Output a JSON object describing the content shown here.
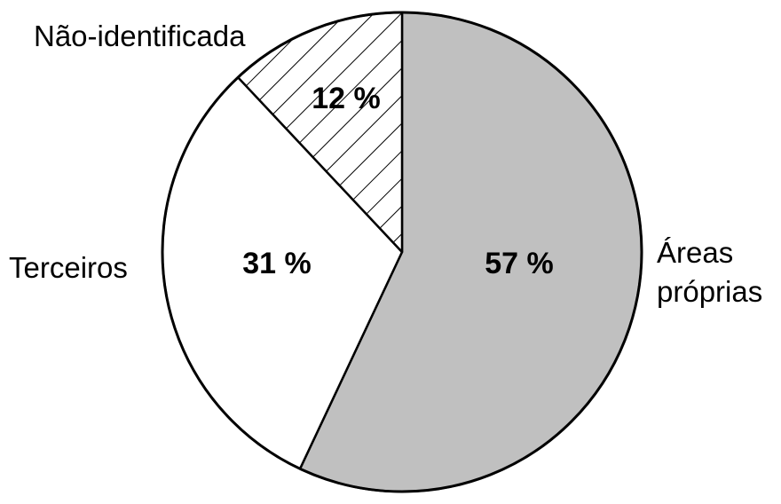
{
  "chart_data": {
    "type": "pie",
    "slices": [
      {
        "label_lines": [
          "Áreas",
          "próprias"
        ],
        "value": 57,
        "value_label": "57 %",
        "fill": "#c0c0c0",
        "pattern": "solid"
      },
      {
        "label_lines": [
          "Terceiros"
        ],
        "value": 31,
        "value_label": "31 %",
        "fill": "#ffffff",
        "pattern": "solid"
      },
      {
        "label_lines": [
          "Não-identificada"
        ],
        "value": 12,
        "value_label": "12 %",
        "fill": "#ffffff",
        "pattern": "diagonal-hatch"
      }
    ],
    "start_angle": "top",
    "direction": "clockwise",
    "legend": "none"
  }
}
